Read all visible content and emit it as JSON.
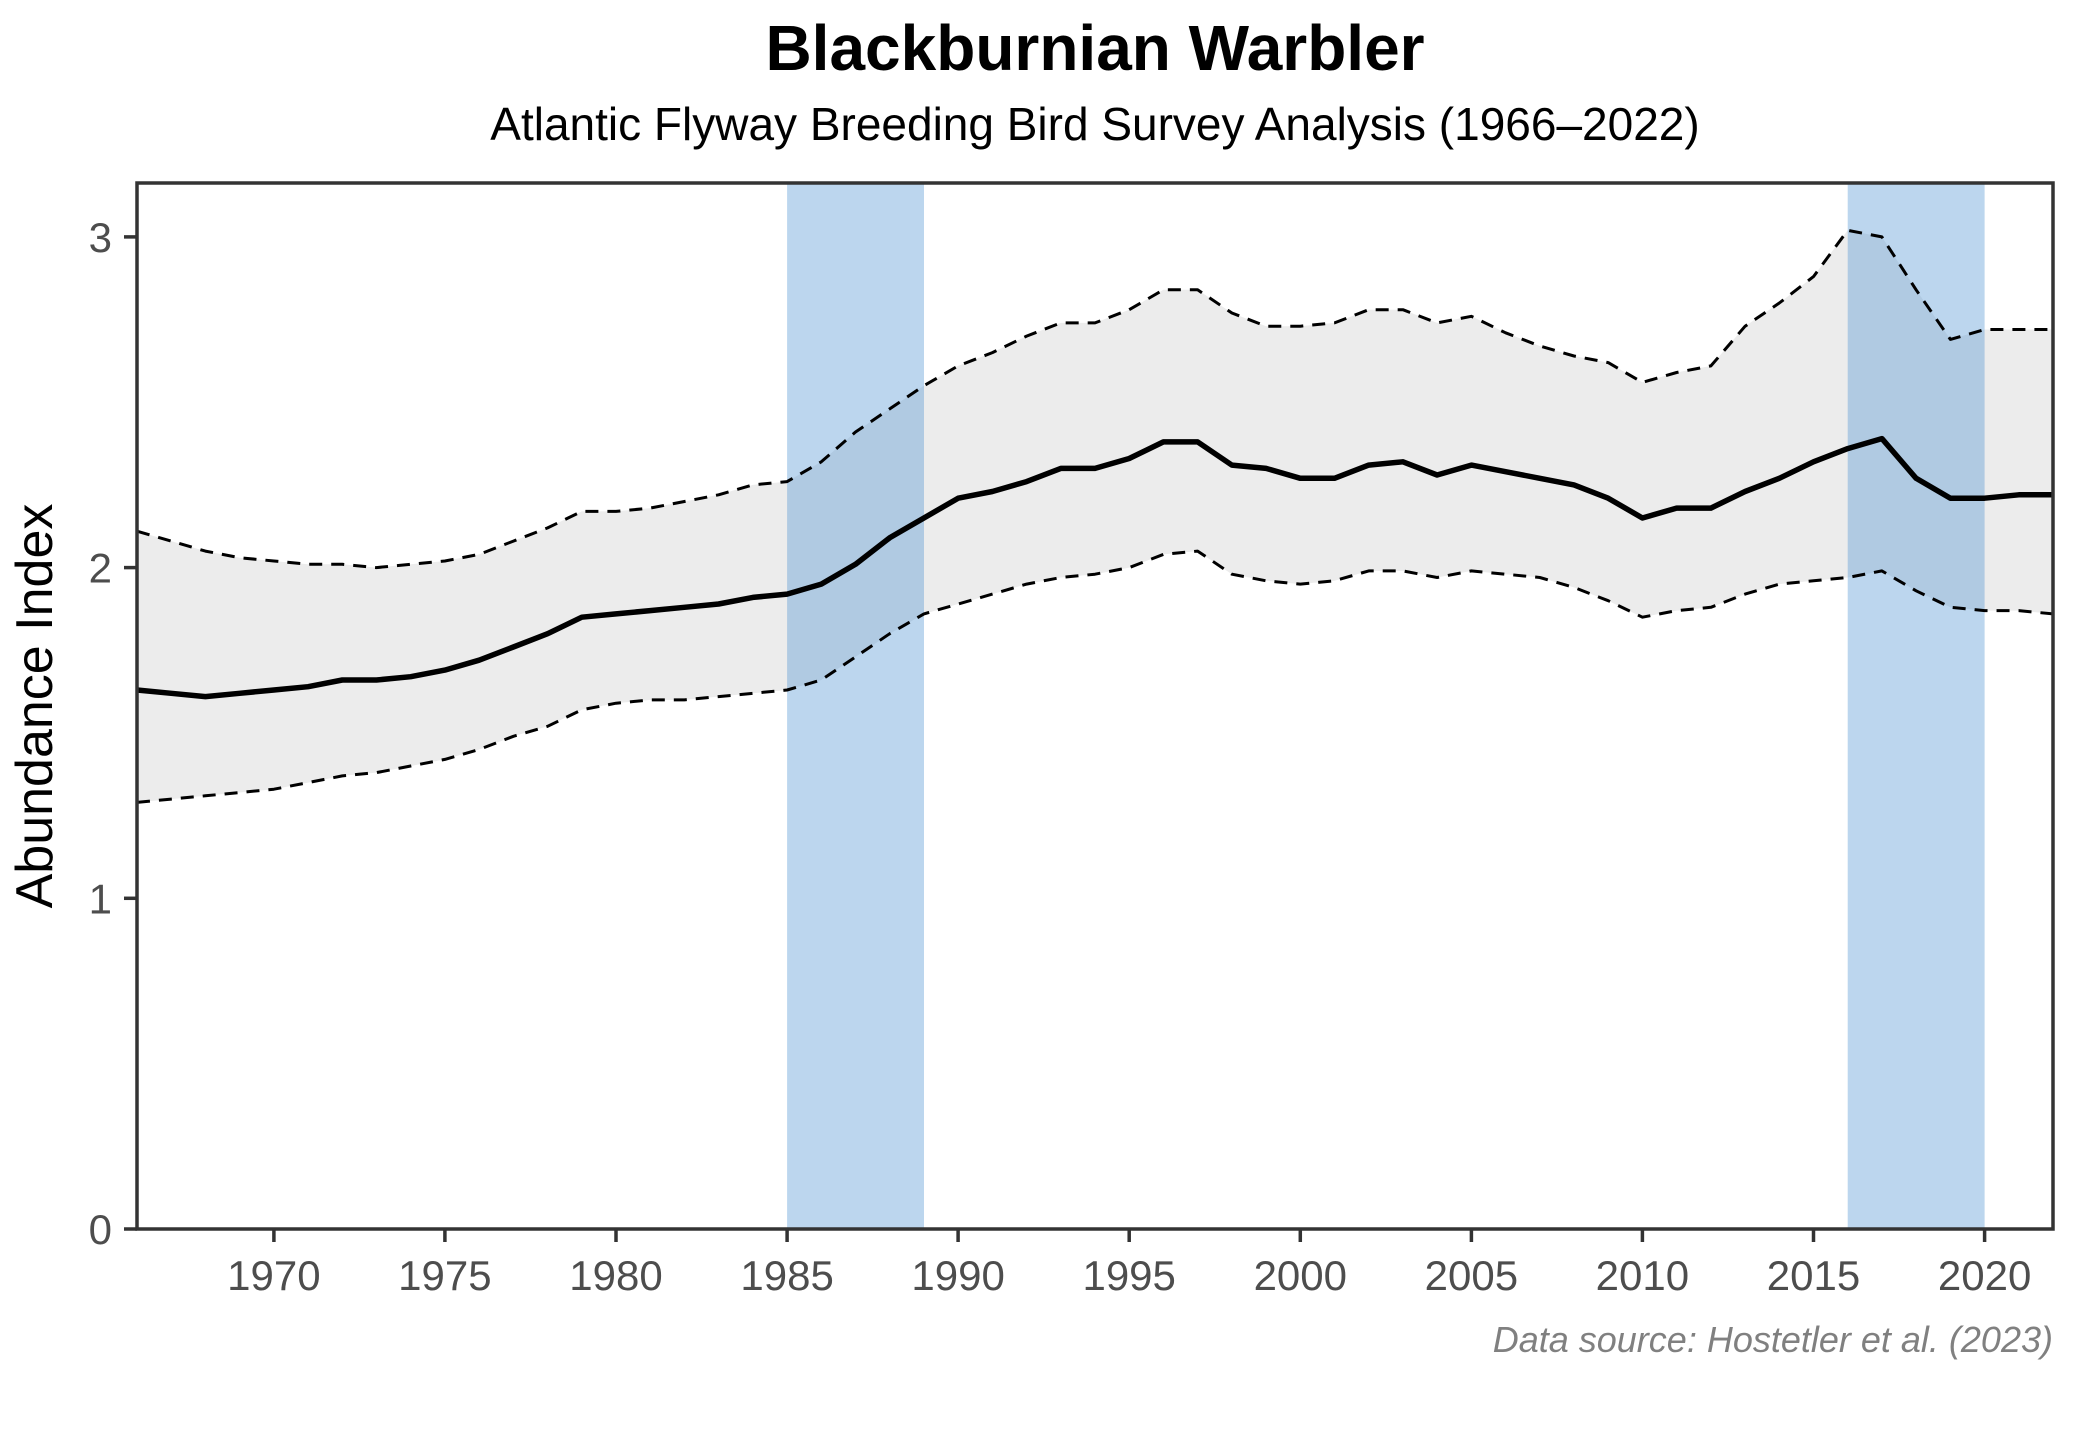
{
  "title": "Blackburnian Warbler",
  "subtitle": "Atlantic Flyway Breeding Bird Survey Analysis (1966–2022)",
  "caption": "Data source: Hostetler et al. (2023)",
  "chart_data": {
    "type": "line",
    "title": "Blackburnian Warbler",
    "subtitle": "Atlantic Flyway Breeding Bird Survey Analysis (1966–2022)",
    "caption": "Data source: Hostetler et al. (2023)",
    "xlabel": "",
    "ylabel": "Abundance Index",
    "xlim": [
      1966,
      2022
    ],
    "ylim": [
      0,
      3.163
    ],
    "x_ticks": [
      1970,
      1975,
      1980,
      1985,
      1990,
      1995,
      2000,
      2005,
      2010,
      2015,
      2020
    ],
    "y_ticks": [
      0,
      1,
      2,
      3
    ],
    "grid": false,
    "legend": "none",
    "ribbon_fill": "#ECECEC",
    "line_color": "#000000",
    "ci_line_color": "#000000",
    "shade_color": "#4A90D1",
    "shade_opacity": 0.37,
    "shaded_periods": [
      {
        "start": 1985,
        "end": 1989
      },
      {
        "start": 2016,
        "end": 2020
      }
    ],
    "x": [
      1966,
      1967,
      1968,
      1969,
      1970,
      1971,
      1972,
      1973,
      1974,
      1975,
      1976,
      1977,
      1978,
      1979,
      1980,
      1981,
      1982,
      1983,
      1984,
      1985,
      1986,
      1987,
      1988,
      1989,
      1990,
      1991,
      1992,
      1993,
      1994,
      1995,
      1996,
      1997,
      1998,
      1999,
      2000,
      2001,
      2002,
      2003,
      2004,
      2005,
      2006,
      2007,
      2008,
      2009,
      2010,
      2011,
      2012,
      2013,
      2014,
      2015,
      2016,
      2017,
      2018,
      2019,
      2020,
      2021,
      2022
    ],
    "series": [
      {
        "name": "Abundance index (mean)",
        "style": "solid",
        "values": [
          1.63,
          1.62,
          1.61,
          1.62,
          1.63,
          1.64,
          1.66,
          1.66,
          1.67,
          1.69,
          1.72,
          1.76,
          1.8,
          1.85,
          1.86,
          1.87,
          1.88,
          1.89,
          1.91,
          1.92,
          1.95,
          2.01,
          2.09,
          2.15,
          2.21,
          2.23,
          2.26,
          2.3,
          2.3,
          2.33,
          2.38,
          2.38,
          2.31,
          2.3,
          2.27,
          2.27,
          2.31,
          2.32,
          2.28,
          2.31,
          2.29,
          2.27,
          2.25,
          2.21,
          2.15,
          2.18,
          2.18,
          2.23,
          2.27,
          2.32,
          2.36,
          2.39,
          2.27,
          2.21,
          2.21,
          2.22,
          2.22
        ]
      },
      {
        "name": "Upper 95% CI",
        "style": "dashed",
        "values": [
          2.11,
          2.08,
          2.05,
          2.03,
          2.02,
          2.01,
          2.01,
          2.0,
          2.01,
          2.02,
          2.04,
          2.08,
          2.12,
          2.17,
          2.17,
          2.18,
          2.2,
          2.22,
          2.25,
          2.26,
          2.32,
          2.41,
          2.48,
          2.55,
          2.61,
          2.65,
          2.7,
          2.74,
          2.74,
          2.78,
          2.84,
          2.84,
          2.77,
          2.73,
          2.73,
          2.74,
          2.78,
          2.78,
          2.74,
          2.76,
          2.71,
          2.67,
          2.64,
          2.62,
          2.56,
          2.59,
          2.61,
          2.73,
          2.8,
          2.88,
          3.02,
          3.0,
          2.84,
          2.69,
          2.72,
          2.72,
          2.72
        ]
      },
      {
        "name": "Lower 95% CI",
        "style": "dashed",
        "values": [
          1.29,
          1.3,
          1.31,
          1.32,
          1.33,
          1.35,
          1.37,
          1.38,
          1.4,
          1.42,
          1.45,
          1.49,
          1.52,
          1.57,
          1.59,
          1.6,
          1.6,
          1.61,
          1.62,
          1.63,
          1.66,
          1.73,
          1.8,
          1.86,
          1.89,
          1.92,
          1.95,
          1.97,
          1.98,
          2.0,
          2.04,
          2.05,
          1.98,
          1.96,
          1.95,
          1.96,
          1.99,
          1.99,
          1.97,
          1.99,
          1.98,
          1.97,
          1.94,
          1.9,
          1.85,
          1.87,
          1.88,
          1.92,
          1.95,
          1.96,
          1.97,
          1.99,
          1.93,
          1.88,
          1.87,
          1.87,
          1.86
        ]
      }
    ]
  },
  "style_colors": {
    "frame": "#333333",
    "tick": "#333333",
    "tick_text": "#4d4d4d",
    "background": "#ffffff"
  }
}
